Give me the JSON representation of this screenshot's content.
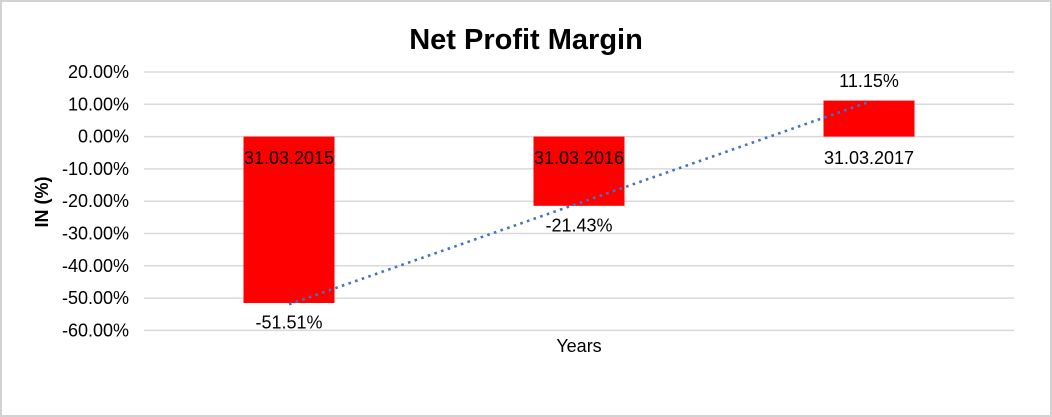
{
  "chart_data": {
    "type": "bar",
    "title": "Net Profit Margin",
    "xlabel": "Years",
    "ylabel": "IN (%)",
    "categories": [
      "31.03.2015",
      "31.03.2016",
      "31.03.2017"
    ],
    "values": [
      -51.51,
      -21.43,
      11.15
    ],
    "value_labels": [
      "-51.51%",
      "-21.43%",
      "11.15%"
    ],
    "y_ticks": [
      20,
      10,
      0,
      -10,
      -20,
      -30,
      -40,
      -50,
      -60
    ],
    "y_tick_labels": [
      "20.00%",
      "10.00%",
      "0.00%",
      "-10.00%",
      "-20.00%",
      "-30.00%",
      "-40.00%",
      "-50.00%",
      "-60.00%"
    ],
    "ylim": [
      -60,
      20
    ],
    "grid": true,
    "legend_position": "none",
    "trendline": {
      "type": "linear",
      "style": "dotted"
    }
  },
  "colors": {
    "bar": "#FF0000",
    "trendline": "#4472C4",
    "gridline": "#D9D9D9",
    "text": "#000000",
    "frame": "#D2D2D2",
    "background": "#FFFFFF"
  }
}
